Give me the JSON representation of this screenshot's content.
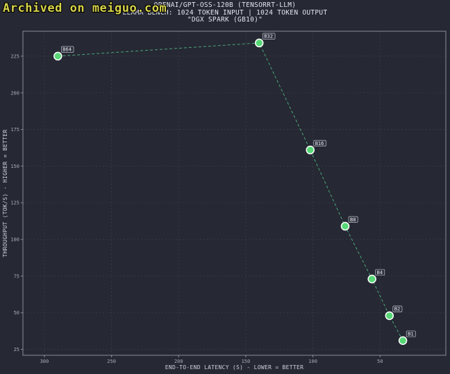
{
  "watermark": "Archived on meiguo.com",
  "chart_data": {
    "type": "scatter",
    "title_lines": [
      "OPENAI/GPT-OSS-120B (TENSORRT-LLM)",
      "LLAMA BENCH: 1024 TOKEN INPUT | 1024 TOKEN OUTPUT",
      "\"DGX SPARK (GB10)\""
    ],
    "xlabel": "END-TO-END LATENCY (S) - LOWER = BETTER",
    "ylabel": "THROUGHPUT (TOK/S) - HIGHER = BETTER",
    "x_inverted": true,
    "xlim": [
      316,
      1
    ],
    "ylim": [
      21,
      242
    ],
    "xticks": [
      300,
      250,
      200,
      150,
      100,
      50
    ],
    "yticks": [
      25,
      50,
      75,
      100,
      125,
      150,
      175,
      200,
      225
    ],
    "grid": true,
    "connect_points": true,
    "colors": {
      "point_fill": "#58d776",
      "point_stroke": "#ffffff",
      "line": "#4aa77a",
      "grid": "#3a3d4a",
      "frame": "#8a8e99"
    },
    "points": [
      {
        "label": "B64",
        "x": 290,
        "y": 225
      },
      {
        "label": "B32",
        "x": 140,
        "y": 234
      },
      {
        "label": "B16",
        "x": 102,
        "y": 161
      },
      {
        "label": "B8",
        "x": 76,
        "y": 109
      },
      {
        "label": "B4",
        "x": 56,
        "y": 73
      },
      {
        "label": "B2",
        "x": 43,
        "y": 48
      },
      {
        "label": "B1",
        "x": 33,
        "y": 31
      }
    ]
  }
}
